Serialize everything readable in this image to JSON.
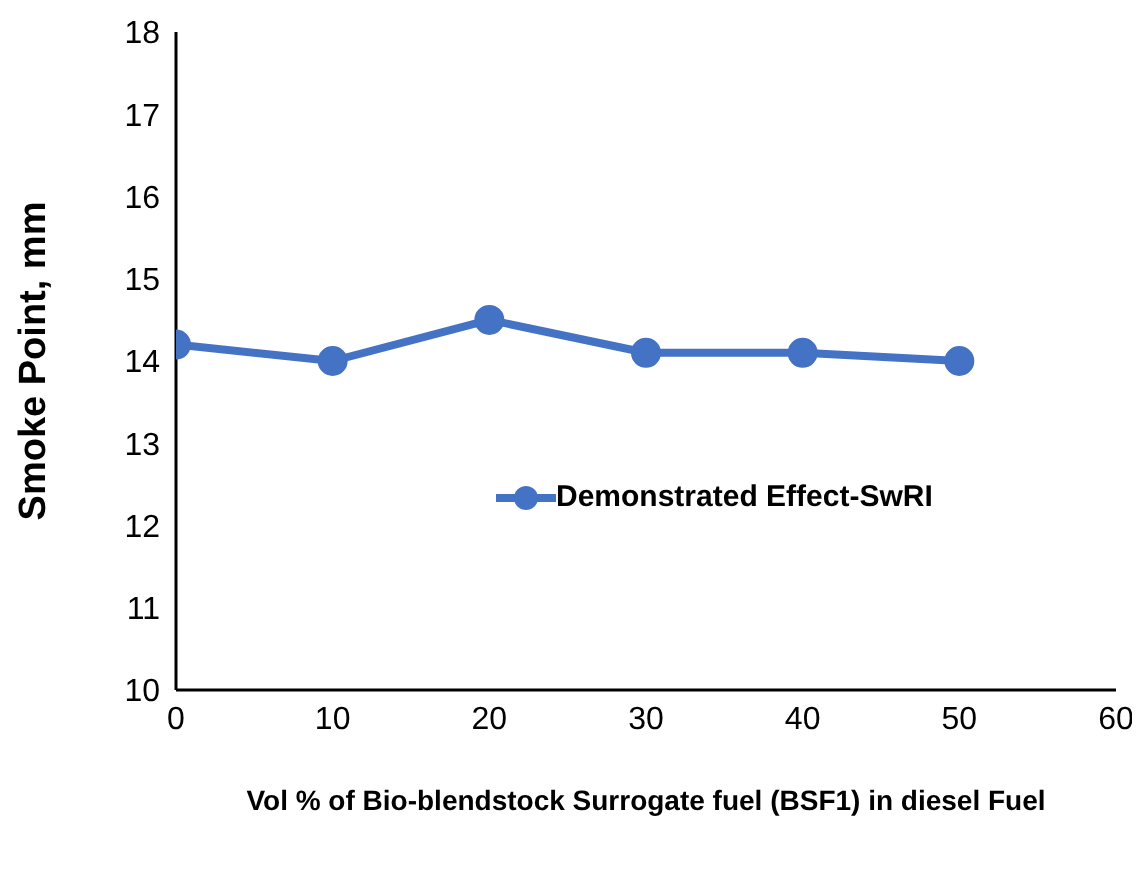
{
  "chart_data": {
    "type": "line",
    "xlabel": "Vol % of Bio-blendstock Surrogate fuel (BSF1) in diesel Fuel",
    "ylabel": "Smoke Point, mm",
    "x": [
      0,
      10,
      20,
      30,
      40,
      50
    ],
    "series": [
      {
        "name": "Demonstrated Effect-SwRI",
        "color": "#4472c4",
        "values": [
          14.2,
          14.0,
          14.5,
          14.1,
          14.1,
          14.0
        ]
      }
    ],
    "xlim": [
      0,
      60
    ],
    "xticks": [
      0,
      10,
      20,
      30,
      40,
      50,
      60
    ],
    "ylim": [
      10,
      18
    ],
    "yticks": [
      10,
      11,
      12,
      13,
      14,
      15,
      16,
      17,
      18
    ],
    "grid": false,
    "legend": "center",
    "marker": "circle",
    "line_style": "solid"
  }
}
